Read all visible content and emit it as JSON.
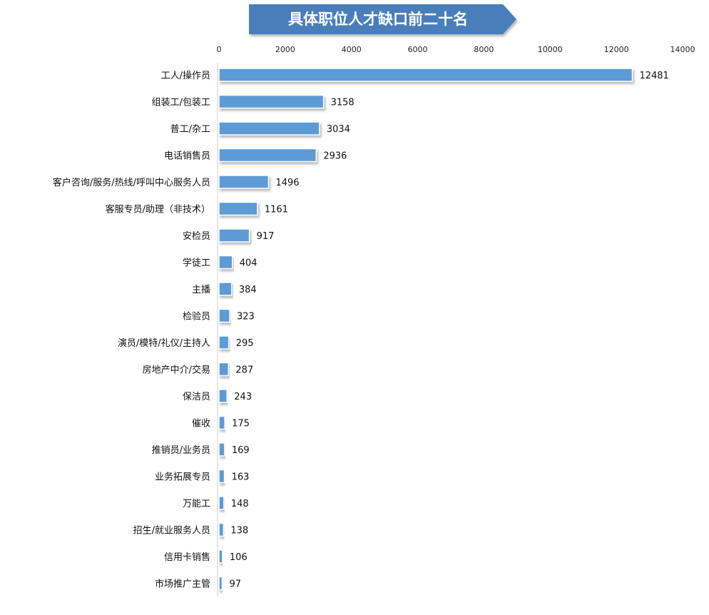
{
  "chart_data": {
    "type": "bar",
    "orientation": "horizontal",
    "title": "具体职位人才缺口前二十名",
    "xlim": [
      0,
      14000
    ],
    "xticks": [
      0,
      2000,
      4000,
      6000,
      8000,
      10000,
      12000,
      14000
    ],
    "axis_position": "top",
    "grid": false,
    "bar_color": "#5b9bd5",
    "title_color": "#4a7ebb",
    "categories": [
      "工人/操作员",
      "组装工/包装工",
      "普工/杂工",
      "电话销售员",
      "客户咨询/服务/热线/呼叫中心服务人员",
      "客服专员/助理（非技术）",
      "安检员",
      "学徒工",
      "主播",
      "检验员",
      "演员/模特/礼仪/主持人",
      "房地产中介/交易",
      "保洁员",
      "催收",
      "推销员/业务员",
      "业务拓展专员",
      "万能工",
      "招生/就业服务人员",
      "信用卡销售",
      "市场推广主管"
    ],
    "values": [
      12481,
      3158,
      3034,
      2936,
      1496,
      1161,
      917,
      404,
      384,
      323,
      295,
      287,
      243,
      175,
      169,
      163,
      148,
      138,
      106,
      97
    ]
  }
}
